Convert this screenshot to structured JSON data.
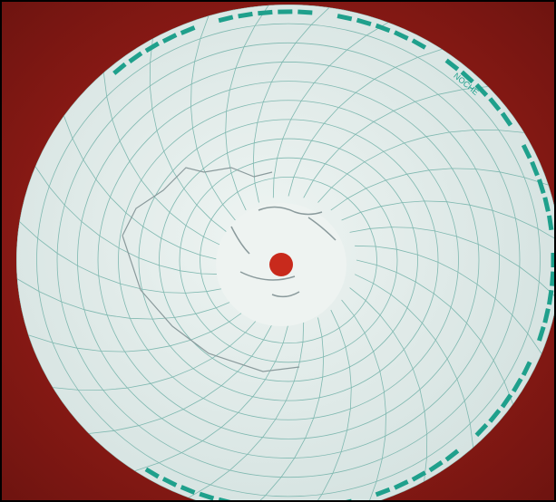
{
  "photo": {
    "ring_label": "NOCHE"
  }
}
